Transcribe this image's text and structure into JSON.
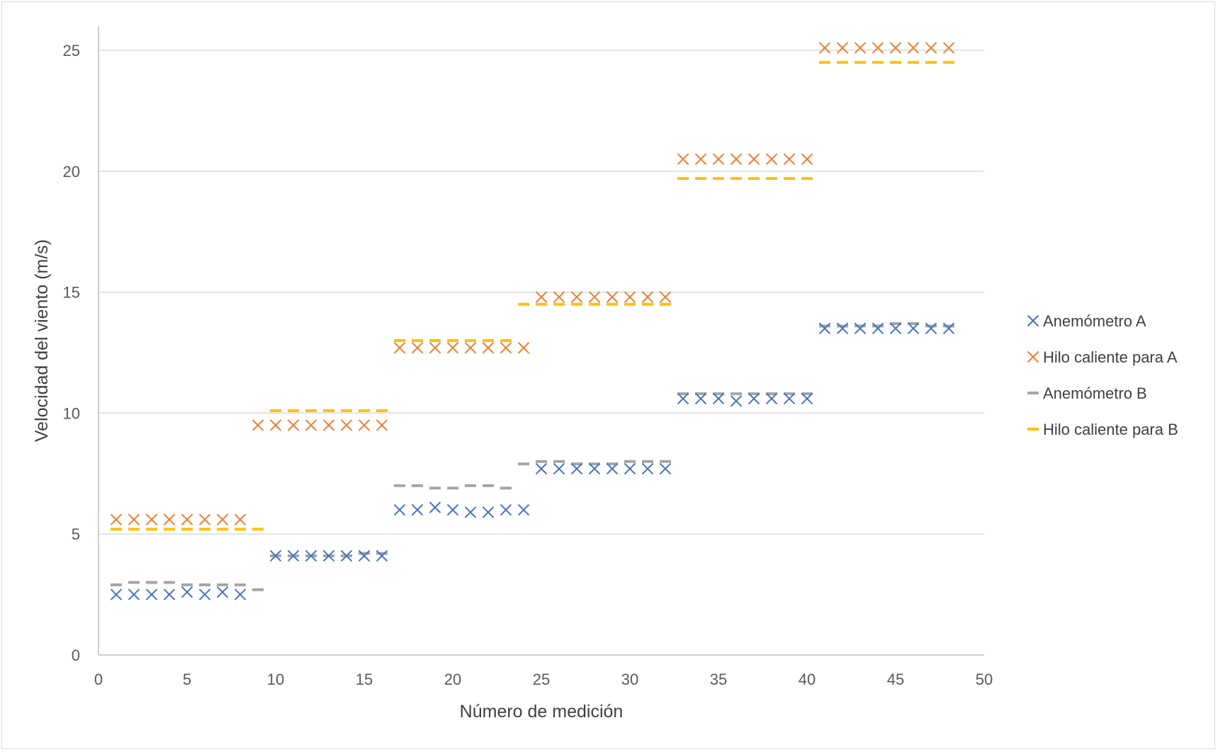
{
  "chart_data": {
    "type": "scatter",
    "title": "",
    "xlabel": "Número de medición",
    "ylabel": "Velocidad del viento (m/s)",
    "xlim": [
      0,
      50
    ],
    "ylim": [
      0,
      25
    ],
    "x_ticks": [
      "0",
      "5",
      "10",
      "15",
      "20",
      "25",
      "30",
      "35",
      "40",
      "45",
      "50"
    ],
    "y_ticks": [
      "0",
      "5",
      "10",
      "15",
      "20",
      "25"
    ],
    "grid": "horizontal",
    "legend_position": "right",
    "series": [
      {
        "name": "Anemómetro A",
        "marker": "x",
        "color": "#4472C4",
        "x": [
          1,
          2,
          3,
          4,
          5,
          6,
          7,
          8,
          10,
          11,
          12,
          13,
          14,
          15,
          16,
          17,
          18,
          19,
          20,
          21,
          22,
          23,
          24,
          25,
          26,
          27,
          28,
          29,
          30,
          31,
          32,
          33,
          34,
          35,
          36,
          37,
          38,
          39,
          40,
          41,
          42,
          43,
          44,
          45,
          46,
          47,
          48
        ],
        "y": [
          2.5,
          2.5,
          2.5,
          2.5,
          2.6,
          2.5,
          2.6,
          2.5,
          4.1,
          4.1,
          4.1,
          4.1,
          4.1,
          4.1,
          4.1,
          6.0,
          6.0,
          6.1,
          6.0,
          5.9,
          5.9,
          6.0,
          6.0,
          7.7,
          7.7,
          7.7,
          7.7,
          7.7,
          7.7,
          7.7,
          7.7,
          10.6,
          10.6,
          10.6,
          10.5,
          10.6,
          10.6,
          10.6,
          10.6,
          13.5,
          13.5,
          13.5,
          13.5,
          13.5,
          13.5,
          13.5,
          13.5
        ]
      },
      {
        "name": "Hilo caliente para A",
        "marker": "x",
        "color": "#ED7D31",
        "x": [
          1,
          2,
          3,
          4,
          5,
          6,
          7,
          8,
          9,
          10,
          11,
          12,
          13,
          14,
          15,
          16,
          17,
          18,
          19,
          20,
          21,
          22,
          23,
          24,
          25,
          26,
          27,
          28,
          29,
          30,
          31,
          32,
          33,
          34,
          35,
          36,
          37,
          38,
          39,
          40,
          41,
          42,
          43,
          44,
          45,
          46,
          47,
          48
        ],
        "y": [
          5.6,
          5.6,
          5.6,
          5.6,
          5.6,
          5.6,
          5.6,
          5.6,
          9.5,
          9.5,
          9.5,
          9.5,
          9.5,
          9.5,
          9.5,
          9.5,
          12.7,
          12.7,
          12.7,
          12.7,
          12.7,
          12.7,
          12.7,
          12.7,
          14.8,
          14.8,
          14.8,
          14.8,
          14.8,
          14.8,
          14.8,
          14.8,
          20.5,
          20.5,
          20.5,
          20.5,
          20.5,
          20.5,
          20.5,
          20.5,
          25.1,
          25.1,
          25.1,
          25.1,
          25.1,
          25.1,
          25.1,
          25.1
        ]
      },
      {
        "name": "Anemómetro B",
        "marker": "dash",
        "color": "#A5A5A5",
        "x": [
          1,
          2,
          3,
          4,
          5,
          6,
          7,
          8,
          9,
          10,
          11,
          12,
          13,
          14,
          15,
          16,
          17,
          18,
          19,
          20,
          21,
          22,
          23,
          24,
          25,
          26,
          27,
          28,
          29,
          30,
          31,
          32,
          33,
          34,
          35,
          36,
          37,
          38,
          39,
          40,
          41,
          42,
          43,
          44,
          45,
          46,
          47,
          48
        ],
        "y": [
          2.9,
          3.0,
          3.0,
          3.0,
          2.9,
          2.9,
          2.9,
          2.9,
          2.7,
          4.1,
          4.1,
          4.1,
          4.1,
          4.1,
          4.2,
          4.2,
          7.0,
          7.0,
          6.9,
          6.9,
          7.0,
          7.0,
          6.9,
          7.9,
          8.0,
          8.0,
          7.9,
          7.9,
          7.9,
          8.0,
          8.0,
          8.0,
          10.8,
          10.8,
          10.8,
          10.8,
          10.8,
          10.8,
          10.8,
          10.8,
          13.6,
          13.6,
          13.6,
          13.6,
          13.7,
          13.7,
          13.6,
          13.6
        ]
      },
      {
        "name": "Hilo caliente para B",
        "marker": "dash",
        "color": "#FFC000",
        "x": [
          1,
          2,
          3,
          4,
          5,
          6,
          7,
          8,
          9,
          10,
          11,
          12,
          13,
          14,
          15,
          16,
          17,
          18,
          19,
          20,
          21,
          22,
          23,
          24,
          25,
          26,
          27,
          28,
          29,
          30,
          31,
          32,
          33,
          34,
          35,
          36,
          37,
          38,
          39,
          40,
          41,
          42,
          43,
          44,
          45,
          46,
          47,
          48
        ],
        "y": [
          5.2,
          5.2,
          5.2,
          5.2,
          5.2,
          5.2,
          5.2,
          5.2,
          5.2,
          10.1,
          10.1,
          10.1,
          10.1,
          10.1,
          10.1,
          10.1,
          13.0,
          13.0,
          13.0,
          13.0,
          13.0,
          13.0,
          13.0,
          14.5,
          14.5,
          14.5,
          14.5,
          14.5,
          14.5,
          14.5,
          14.5,
          14.5,
          19.7,
          19.7,
          19.7,
          19.7,
          19.7,
          19.7,
          19.7,
          19.7,
          24.5,
          24.5,
          24.5,
          24.5,
          24.5,
          24.5,
          24.5,
          24.5
        ]
      }
    ]
  }
}
